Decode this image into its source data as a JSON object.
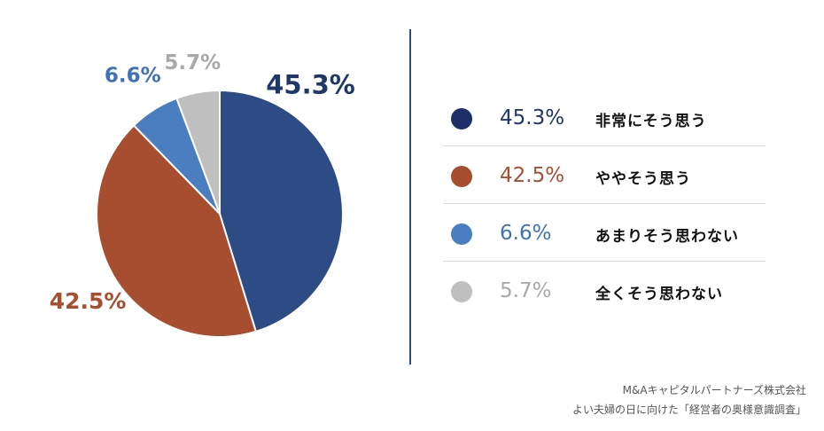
{
  "chart_data": {
    "type": "pie",
    "categories": [
      "非常にそう思う",
      "ややそう思う",
      "あまりそう思わない",
      "全くそう思わない"
    ],
    "values": [
      45.3,
      42.5,
      6.6,
      5.7
    ],
    "value_labels": [
      "45.3%",
      "42.5%",
      "6.6%",
      "5.7%"
    ],
    "colors": [
      "#2d4b84",
      "#a84e30",
      "#4a7ec0",
      "#bfbfbf"
    ],
    "label_colors": [
      "#1f3868",
      "#a84e30",
      "#3f72b5",
      "#a8a8a8"
    ],
    "start_angle": "12 o'clock",
    "direction": "clockwise",
    "legend_position": "right"
  },
  "source": {
    "line1": "M&Aキャピタルパートナーズ株式会社",
    "line2": "よい夫婦の日に向けた「経営者の奥様意識調査」"
  }
}
